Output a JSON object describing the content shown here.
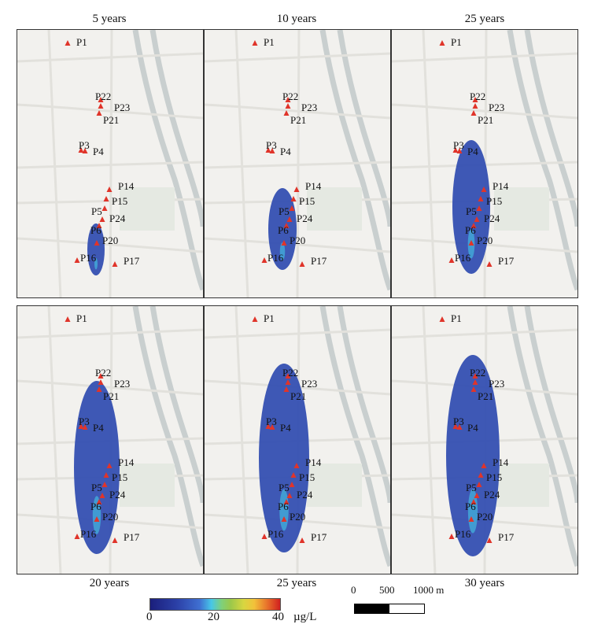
{
  "panels": [
    {
      "label": "5 years",
      "label_pos": "top"
    },
    {
      "label": "10 years",
      "label_pos": "top"
    },
    {
      "label": "25 years",
      "label_pos": "top"
    },
    {
      "label": "20 years",
      "label_pos": "bottom"
    },
    {
      "label": "25 years",
      "label_pos": "bottom"
    },
    {
      "label": "30 years",
      "label_pos": "bottom"
    }
  ],
  "wells": [
    "P1",
    "P22",
    "P23",
    "P21",
    "P3",
    "P4",
    "P14",
    "P15",
    "P5",
    "P24",
    "P6",
    "P20",
    "P16",
    "P17"
  ],
  "colorbar": {
    "ticks": [
      "0",
      "20",
      "40"
    ],
    "unit": "µg/L",
    "min": 0,
    "max": 40
  },
  "scalebar": {
    "ticks": [
      "0",
      "500",
      "1000 m"
    ]
  },
  "colors": {
    "plume": "#2f4bb0",
    "plume_core": "#45c8e6",
    "marker": "#e0342a",
    "map_bg": "#f2f1ee"
  }
}
